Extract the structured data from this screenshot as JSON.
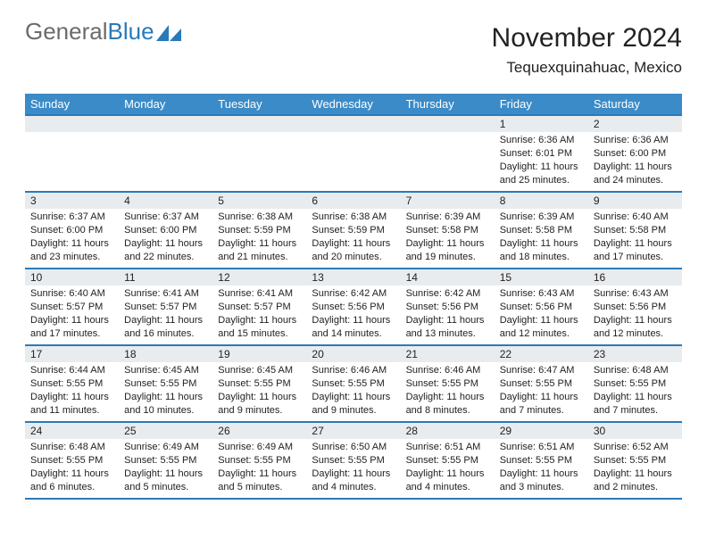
{
  "logo": {
    "part1": "General",
    "part2": "Blue"
  },
  "title": "November 2024",
  "location": "Tequexquinahuac, Mexico",
  "colors": {
    "header_bg": "#3b8bc8",
    "header_border": "#2a7ab9",
    "daynum_bg": "#e9ecef",
    "text": "#222222",
    "logo_gray": "#6b6b6b",
    "logo_blue": "#2a7ab9"
  },
  "weekdays": [
    "Sunday",
    "Monday",
    "Tuesday",
    "Wednesday",
    "Thursday",
    "Friday",
    "Saturday"
  ],
  "weeks": [
    [
      {
        "n": "",
        "sr": "",
        "ss": "",
        "dl": ""
      },
      {
        "n": "",
        "sr": "",
        "ss": "",
        "dl": ""
      },
      {
        "n": "",
        "sr": "",
        "ss": "",
        "dl": ""
      },
      {
        "n": "",
        "sr": "",
        "ss": "",
        "dl": ""
      },
      {
        "n": "",
        "sr": "",
        "ss": "",
        "dl": ""
      },
      {
        "n": "1",
        "sr": "Sunrise: 6:36 AM",
        "ss": "Sunset: 6:01 PM",
        "dl": "Daylight: 11 hours and 25 minutes."
      },
      {
        "n": "2",
        "sr": "Sunrise: 6:36 AM",
        "ss": "Sunset: 6:00 PM",
        "dl": "Daylight: 11 hours and 24 minutes."
      }
    ],
    [
      {
        "n": "3",
        "sr": "Sunrise: 6:37 AM",
        "ss": "Sunset: 6:00 PM",
        "dl": "Daylight: 11 hours and 23 minutes."
      },
      {
        "n": "4",
        "sr": "Sunrise: 6:37 AM",
        "ss": "Sunset: 6:00 PM",
        "dl": "Daylight: 11 hours and 22 minutes."
      },
      {
        "n": "5",
        "sr": "Sunrise: 6:38 AM",
        "ss": "Sunset: 5:59 PM",
        "dl": "Daylight: 11 hours and 21 minutes."
      },
      {
        "n": "6",
        "sr": "Sunrise: 6:38 AM",
        "ss": "Sunset: 5:59 PM",
        "dl": "Daylight: 11 hours and 20 minutes."
      },
      {
        "n": "7",
        "sr": "Sunrise: 6:39 AM",
        "ss": "Sunset: 5:58 PM",
        "dl": "Daylight: 11 hours and 19 minutes."
      },
      {
        "n": "8",
        "sr": "Sunrise: 6:39 AM",
        "ss": "Sunset: 5:58 PM",
        "dl": "Daylight: 11 hours and 18 minutes."
      },
      {
        "n": "9",
        "sr": "Sunrise: 6:40 AM",
        "ss": "Sunset: 5:58 PM",
        "dl": "Daylight: 11 hours and 17 minutes."
      }
    ],
    [
      {
        "n": "10",
        "sr": "Sunrise: 6:40 AM",
        "ss": "Sunset: 5:57 PM",
        "dl": "Daylight: 11 hours and 17 minutes."
      },
      {
        "n": "11",
        "sr": "Sunrise: 6:41 AM",
        "ss": "Sunset: 5:57 PM",
        "dl": "Daylight: 11 hours and 16 minutes."
      },
      {
        "n": "12",
        "sr": "Sunrise: 6:41 AM",
        "ss": "Sunset: 5:57 PM",
        "dl": "Daylight: 11 hours and 15 minutes."
      },
      {
        "n": "13",
        "sr": "Sunrise: 6:42 AM",
        "ss": "Sunset: 5:56 PM",
        "dl": "Daylight: 11 hours and 14 minutes."
      },
      {
        "n": "14",
        "sr": "Sunrise: 6:42 AM",
        "ss": "Sunset: 5:56 PM",
        "dl": "Daylight: 11 hours and 13 minutes."
      },
      {
        "n": "15",
        "sr": "Sunrise: 6:43 AM",
        "ss": "Sunset: 5:56 PM",
        "dl": "Daylight: 11 hours and 12 minutes."
      },
      {
        "n": "16",
        "sr": "Sunrise: 6:43 AM",
        "ss": "Sunset: 5:56 PM",
        "dl": "Daylight: 11 hours and 12 minutes."
      }
    ],
    [
      {
        "n": "17",
        "sr": "Sunrise: 6:44 AM",
        "ss": "Sunset: 5:55 PM",
        "dl": "Daylight: 11 hours and 11 minutes."
      },
      {
        "n": "18",
        "sr": "Sunrise: 6:45 AM",
        "ss": "Sunset: 5:55 PM",
        "dl": "Daylight: 11 hours and 10 minutes."
      },
      {
        "n": "19",
        "sr": "Sunrise: 6:45 AM",
        "ss": "Sunset: 5:55 PM",
        "dl": "Daylight: 11 hours and 9 minutes."
      },
      {
        "n": "20",
        "sr": "Sunrise: 6:46 AM",
        "ss": "Sunset: 5:55 PM",
        "dl": "Daylight: 11 hours and 9 minutes."
      },
      {
        "n": "21",
        "sr": "Sunrise: 6:46 AM",
        "ss": "Sunset: 5:55 PM",
        "dl": "Daylight: 11 hours and 8 minutes."
      },
      {
        "n": "22",
        "sr": "Sunrise: 6:47 AM",
        "ss": "Sunset: 5:55 PM",
        "dl": "Daylight: 11 hours and 7 minutes."
      },
      {
        "n": "23",
        "sr": "Sunrise: 6:48 AM",
        "ss": "Sunset: 5:55 PM",
        "dl": "Daylight: 11 hours and 7 minutes."
      }
    ],
    [
      {
        "n": "24",
        "sr": "Sunrise: 6:48 AM",
        "ss": "Sunset: 5:55 PM",
        "dl": "Daylight: 11 hours and 6 minutes."
      },
      {
        "n": "25",
        "sr": "Sunrise: 6:49 AM",
        "ss": "Sunset: 5:55 PM",
        "dl": "Daylight: 11 hours and 5 minutes."
      },
      {
        "n": "26",
        "sr": "Sunrise: 6:49 AM",
        "ss": "Sunset: 5:55 PM",
        "dl": "Daylight: 11 hours and 5 minutes."
      },
      {
        "n": "27",
        "sr": "Sunrise: 6:50 AM",
        "ss": "Sunset: 5:55 PM",
        "dl": "Daylight: 11 hours and 4 minutes."
      },
      {
        "n": "28",
        "sr": "Sunrise: 6:51 AM",
        "ss": "Sunset: 5:55 PM",
        "dl": "Daylight: 11 hours and 4 minutes."
      },
      {
        "n": "29",
        "sr": "Sunrise: 6:51 AM",
        "ss": "Sunset: 5:55 PM",
        "dl": "Daylight: 11 hours and 3 minutes."
      },
      {
        "n": "30",
        "sr": "Sunrise: 6:52 AM",
        "ss": "Sunset: 5:55 PM",
        "dl": "Daylight: 11 hours and 2 minutes."
      }
    ]
  ]
}
